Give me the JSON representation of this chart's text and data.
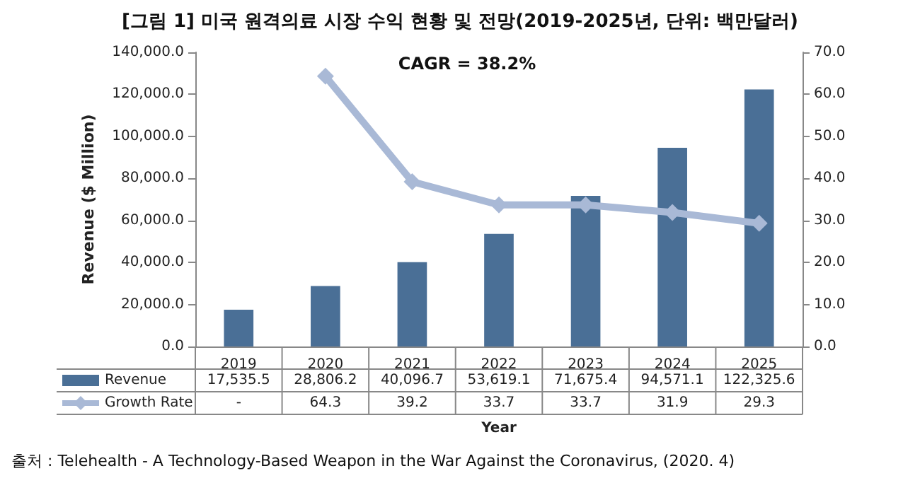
{
  "chart_data": {
    "type": "bar",
    "title": "[그림 1] 미국 원격의료 시장 수익 현황 및 전망(2019-2025년, 단위: 백만달러)",
    "categories": [
      "2019",
      "2020",
      "2021",
      "2022",
      "2023",
      "2024",
      "2025"
    ],
    "series": [
      {
        "name": "Revenue",
        "color": "#4a6f96",
        "values": [
          17535.5,
          28806.2,
          40096.7,
          53619.1,
          71675.4,
          94571.1,
          122325.6
        ],
        "value_labels": [
          "17,535.5",
          "28,806.2",
          "40,096.7",
          "53,619.1",
          "71,675.4",
          "94,571.1",
          "122,325.6"
        ]
      },
      {
        "name": "Growth Rate",
        "type": "line",
        "axis": "y2",
        "color": "#a9b9d6",
        "values": [
          null,
          64.3,
          39.2,
          33.7,
          33.7,
          31.9,
          29.3
        ],
        "value_labels": [
          "-",
          "64.3",
          "39.2",
          "33.7",
          "33.7",
          "31.9",
          "29.3"
        ]
      }
    ],
    "xlabel": "Year",
    "ylabel": "Revenue ($ Million)",
    "ylim": [
      0,
      140000
    ],
    "yticks": [
      {
        "value": 0,
        "label": "0.0"
      },
      {
        "value": 20000,
        "label": "20,000.0"
      },
      {
        "value": 40000,
        "label": "40,000.0"
      },
      {
        "value": 60000,
        "label": "60,000.0"
      },
      {
        "value": 80000,
        "label": "80,000.0"
      },
      {
        "value": 100000,
        "label": "100,000.0"
      },
      {
        "value": 120000,
        "label": "120,000.0"
      },
      {
        "value": 140000,
        "label": "140,000.0"
      }
    ],
    "y2lim": [
      0,
      70
    ],
    "y2ticks": [
      {
        "value": 0,
        "label": "0.0"
      },
      {
        "value": 10,
        "label": "10.0"
      },
      {
        "value": 20,
        "label": "20.0"
      },
      {
        "value": 30,
        "label": "30.0"
      },
      {
        "value": 40,
        "label": "40.0"
      },
      {
        "value": 50,
        "label": "50.0"
      },
      {
        "value": 60,
        "label": "60.0"
      },
      {
        "value": 70,
        "label": "70.0"
      }
    ],
    "marker": "diamond",
    "legend": "bottom",
    "annotations": [
      "CAGR = 38.2%",
      "출처 : Telehealth - A Technology-Based Weapon in the War Against the Coronavirus, (2020. 4)"
    ]
  }
}
